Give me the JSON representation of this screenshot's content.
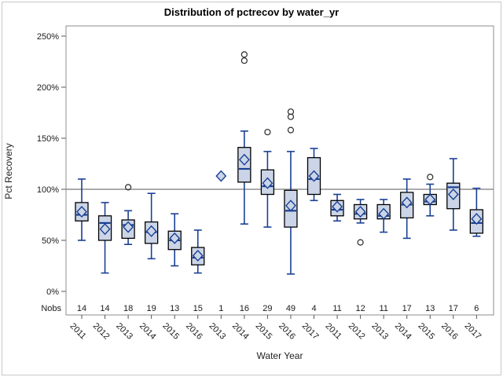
{
  "figure": {
    "background": "#FFFFFF",
    "border_color": "#C9C9C9"
  },
  "chart_data": {
    "type": "boxplot",
    "title": "Distribution of pctrecov by water_yr",
    "xlabel": "Water Year",
    "ylabel": "Pct Recovery",
    "nobs_label": "Nobs",
    "yaxis": {
      "tick_values": [
        0,
        50,
        100,
        150,
        200,
        250
      ],
      "tick_labels": [
        "0%",
        "50%",
        "100%",
        "150%",
        "200%",
        "250%"
      ],
      "min": -23,
      "max": 260,
      "grid": false
    },
    "reference_line": 100,
    "legend": "none",
    "categories": [
      "2011",
      "2012",
      "2013",
      "2014",
      "2015",
      "2016",
      "2013",
      "2014",
      "2015",
      "2016",
      "2017",
      "2011",
      "2012",
      "2013",
      "2014",
      "2015",
      "2016",
      "2017"
    ],
    "nobs": [
      14,
      14,
      18,
      19,
      13,
      15,
      1,
      16,
      29,
      49,
      4,
      11,
      12,
      11,
      17,
      13,
      17,
      6
    ],
    "boxes": [
      {
        "year": "2011",
        "n": 14,
        "low": 50,
        "q1": 69,
        "median": 75,
        "q3": 87,
        "high": 110,
        "mean": 78,
        "outliers": []
      },
      {
        "year": "2012",
        "n": 14,
        "low": 18,
        "q1": 50,
        "median": 67,
        "q3": 74,
        "high": 87,
        "mean": 61,
        "outliers": []
      },
      {
        "year": "2013",
        "n": 18,
        "low": 46,
        "q1": 52,
        "median": 65,
        "q3": 70,
        "high": 79,
        "mean": 63,
        "outliers": [
          102
        ]
      },
      {
        "year": "2014",
        "n": 19,
        "low": 32,
        "q1": 47,
        "median": 58,
        "q3": 68,
        "high": 96,
        "mean": 59,
        "outliers": []
      },
      {
        "year": "2015",
        "n": 13,
        "low": 25,
        "q1": 41,
        "median": 50,
        "q3": 59,
        "high": 76,
        "mean": 52,
        "outliers": []
      },
      {
        "year": "2016",
        "n": 15,
        "low": 18,
        "q1": 26,
        "median": 33,
        "q3": 43,
        "high": 60,
        "mean": 35,
        "outliers": []
      },
      {
        "year": "2013",
        "n": 1,
        "low": 113,
        "q1": 113,
        "median": 113,
        "q3": 113,
        "high": 113,
        "mean": 113,
        "outliers": [],
        "single_point": true
      },
      {
        "year": "2014",
        "n": 16,
        "low": 66,
        "q1": 107,
        "median": 120,
        "q3": 141,
        "high": 157,
        "mean": 129,
        "outliers": [
          226,
          232
        ]
      },
      {
        "year": "2015",
        "n": 29,
        "low": 63,
        "q1": 95,
        "median": 103,
        "q3": 119,
        "high": 137,
        "mean": 106,
        "outliers": [
          156
        ]
      },
      {
        "year": "2016",
        "n": 49,
        "low": 17,
        "q1": 63,
        "median": 79,
        "q3": 99,
        "high": 137,
        "mean": 84,
        "outliers": [
          158,
          171,
          176
        ]
      },
      {
        "year": "2017",
        "n": 4,
        "low": 89,
        "q1": 95,
        "median": 110,
        "q3": 131,
        "high": 140,
        "mean": 113,
        "outliers": []
      },
      {
        "year": "2011",
        "n": 11,
        "low": 69,
        "q1": 74,
        "median": 80,
        "q3": 89,
        "high": 95,
        "mean": 83,
        "outliers": []
      },
      {
        "year": "2012",
        "n": 12,
        "low": 67,
        "q1": 71,
        "median": 76,
        "q3": 85,
        "high": 90,
        "mean": 78,
        "outliers": [
          48
        ]
      },
      {
        "year": "2013",
        "n": 11,
        "low": 58,
        "q1": 71,
        "median": 74,
        "q3": 85,
        "high": 90,
        "mean": 76,
        "outliers": []
      },
      {
        "year": "2014",
        "n": 17,
        "low": 52,
        "q1": 72,
        "median": 85,
        "q3": 97,
        "high": 110,
        "mean": 87,
        "outliers": []
      },
      {
        "year": "2015",
        "n": 13,
        "low": 74,
        "q1": 85,
        "median": 88,
        "q3": 95,
        "high": 105,
        "mean": 90,
        "outliers": [
          112
        ]
      },
      {
        "year": "2016",
        "n": 17,
        "low": 60,
        "q1": 81,
        "median": 102,
        "q3": 106,
        "high": 130,
        "mean": 95,
        "outliers": []
      },
      {
        "year": "2017",
        "n": 6,
        "low": 54,
        "q1": 57,
        "median": 67,
        "q3": 80,
        "high": 101,
        "mean": 71,
        "outliers": []
      }
    ],
    "colors": {
      "line": "#1A4094",
      "box_fill": "#CBD5E7",
      "box_border": "#000000",
      "outlier": "#2A2A2A",
      "reference_line": "#ABABAB",
      "frame": "#8C8C8C",
      "text": "#1A1A1A"
    }
  }
}
